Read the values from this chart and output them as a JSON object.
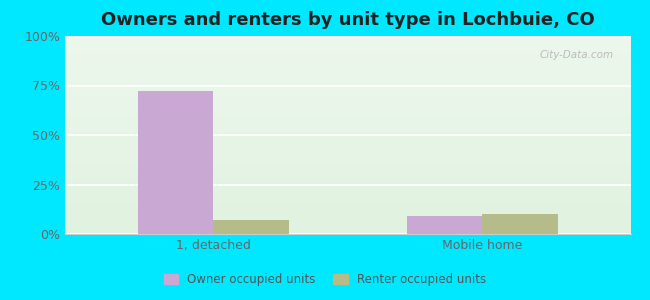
{
  "title": "Owners and renters by unit type in Lochbuie, CO",
  "categories": [
    "1, detached",
    "Mobile home"
  ],
  "owner_values": [
    72,
    9
  ],
  "renter_values": [
    7,
    10
  ],
  "owner_color": "#c9a8d4",
  "renter_color": "#b5bc8a",
  "ylim": [
    0,
    100
  ],
  "yticks": [
    0,
    25,
    50,
    75,
    100
  ],
  "ytick_labels": [
    "0%",
    "25%",
    "50%",
    "75%",
    "100%"
  ],
  "outer_bg": "#00e8ff",
  "watermark": "City-Data.com",
  "legend_labels": [
    "Owner occupied units",
    "Renter occupied units"
  ],
  "bar_width": 0.28,
  "title_fontsize": 13,
  "tick_fontsize": 9,
  "xlim": [
    -0.55,
    1.55
  ]
}
